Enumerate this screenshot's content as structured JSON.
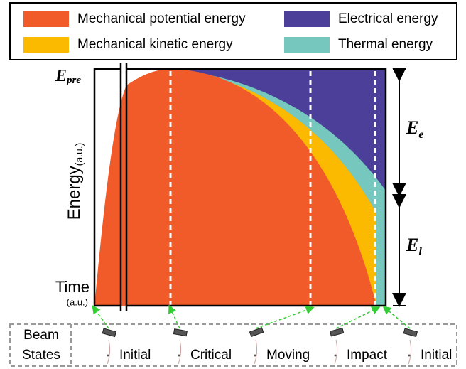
{
  "legend": [
    {
      "label": "Mechanical potential energy",
      "color": "#f15a29"
    },
    {
      "label": "Electrical energy",
      "color": "#4b3f99"
    },
    {
      "label": "Mechanical kinetic energy",
      "color": "#fbb900"
    },
    {
      "label": "Thermal energy",
      "color": "#76c7be"
    }
  ],
  "y_axis": {
    "label": "Energy",
    "unit": "(a.u.)"
  },
  "x_axis": {
    "label": "Time",
    "unit": "(a.u.)"
  },
  "levels": {
    "pre": {
      "symbol": "E",
      "subscript": "pre"
    },
    "electrical": {
      "symbol": "E",
      "subscript": "e"
    },
    "loss": {
      "symbol": "E",
      "subscript": "l"
    }
  },
  "beam_states": {
    "title": [
      "Beam",
      "States"
    ],
    "states": [
      "Initial",
      "Critical",
      "Moving",
      "Impact",
      "Initial"
    ]
  }
}
